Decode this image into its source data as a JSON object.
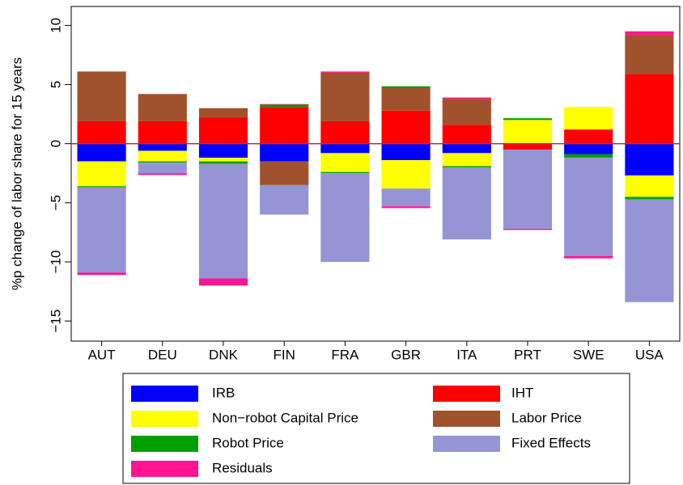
{
  "chart_data": {
    "type": "stacked-bar",
    "y_label": "%p change of labor share for 15 years",
    "categories": [
      "AUT",
      "DEU",
      "DNK",
      "FIN",
      "FRA",
      "GBR",
      "ITA",
      "PRT",
      "SWE",
      "USA"
    ],
    "series": [
      {
        "name": "IRB",
        "color": "#0000ff",
        "values": [
          -1.5,
          -0.6,
          -1.2,
          -1.5,
          -0.8,
          -1.4,
          -0.8,
          0,
          -0.9,
          -2.7
        ]
      },
      {
        "name": "IHT",
        "color": "#ff0000",
        "values": [
          1.9,
          1.9,
          2.2,
          3.1,
          1.9,
          2.8,
          1.6,
          -0.5,
          1.2,
          5.9
        ]
      },
      {
        "name": "Non−robot Capital Price",
        "color": "#ffff00",
        "values": [
          -2.1,
          -0.9,
          -0.3,
          0,
          -1.6,
          -2.4,
          -1.1,
          2.0,
          1.9,
          -1.8
        ]
      },
      {
        "name": "Labor Price",
        "color": "#a0522d",
        "values": [
          4.2,
          2.3,
          0.8,
          -2.0,
          4.1,
          1.9,
          2.2,
          0,
          0,
          3.3
        ]
      },
      {
        "name": "Robot Price",
        "color": "#00a000",
        "values": [
          -0.1,
          -0.1,
          -0.2,
          0.2,
          -0.1,
          0.15,
          -0.1,
          0.15,
          -0.3,
          -0.2
        ]
      },
      {
        "name": "Fixed Effects",
        "color": "#9595d5",
        "values": [
          -7.2,
          -0.9,
          -9.7,
          -2.5,
          -7.5,
          -1.5,
          -6.1,
          -6.7,
          -8.3,
          -8.7
        ]
      },
      {
        "name": "Residuals",
        "color": "#ff1493",
        "values": [
          -0.2,
          -0.15,
          -0.6,
          0.05,
          0.1,
          -0.15,
          0.1,
          -0.1,
          -0.2,
          0.3
        ]
      }
    ],
    "ylim": [
      -16.7,
      11.6
    ],
    "yticks": [
      {
        "value": -15,
        "label": "−15"
      },
      {
        "value": -10,
        "label": "−10"
      },
      {
        "value": -5,
        "label": "−5"
      },
      0,
      5,
      10
    ],
    "zero_line_color": "#b03050"
  }
}
